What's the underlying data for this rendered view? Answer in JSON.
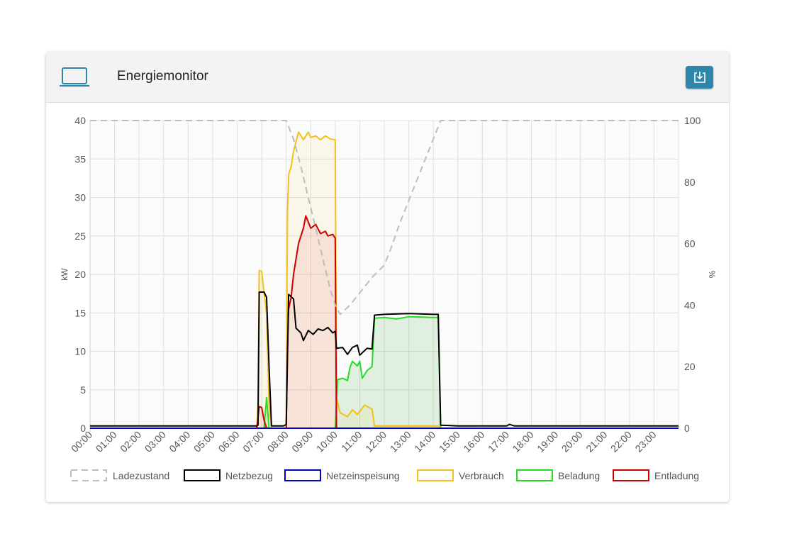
{
  "header": {
    "title": "Energiemonitor",
    "icon": "laptop-icon",
    "download_icon": "download-icon"
  },
  "colors": {
    "ladezustand": "#bdbdbd",
    "netzbezug": "#000000",
    "netzeinspeisung": "#0000c8",
    "verbrauch": "#f2c21b",
    "beladung": "#22dd22",
    "entladung": "#cc0000",
    "accent": "#2f86ab"
  },
  "chart_data": {
    "type": "line",
    "x_ticks": [
      "00:00",
      "01:00",
      "02:00",
      "03:00",
      "04:00",
      "05:00",
      "06:00",
      "07:00",
      "08:00",
      "09:00",
      "10:00",
      "11:00",
      "12:00",
      "13:00",
      "14:00",
      "15:00",
      "16:00",
      "17:00",
      "18:00",
      "19:00",
      "20:00",
      "21:00",
      "22:00",
      "23:00"
    ],
    "ylabel": "kW",
    "y2label": "%",
    "ylim": [
      0,
      40
    ],
    "y2lim": [
      0,
      100
    ],
    "y_ticks": [
      0,
      5,
      10,
      15,
      20,
      25,
      30,
      35,
      40
    ],
    "y2_ticks": [
      0,
      20,
      40,
      60,
      80,
      100
    ],
    "grid": true,
    "legend_position": "bottom",
    "series": [
      {
        "name": "Ladezustand",
        "axis": "right",
        "style": "dashed",
        "fill": false,
        "points": [
          [
            0,
            100
          ],
          [
            8.0,
            100
          ],
          [
            8.3,
            94
          ],
          [
            8.6,
            85
          ],
          [
            8.9,
            75
          ],
          [
            9.2,
            65
          ],
          [
            9.5,
            55
          ],
          [
            9.8,
            45
          ],
          [
            10.0,
            40
          ],
          [
            10.2,
            37
          ],
          [
            10.6,
            40
          ],
          [
            11.0,
            44
          ],
          [
            11.5,
            49
          ],
          [
            12.0,
            53
          ],
          [
            12.3,
            59
          ],
          [
            12.6,
            66
          ],
          [
            13.0,
            74
          ],
          [
            13.4,
            82
          ],
          [
            13.7,
            88
          ],
          [
            14.0,
            94
          ],
          [
            14.3,
            100
          ],
          [
            24,
            100
          ]
        ]
      },
      {
        "name": "Netzbezug",
        "axis": "left",
        "style": "solid",
        "fill": false,
        "points": [
          [
            0,
            0.3
          ],
          [
            6.8,
            0.3
          ],
          [
            6.85,
            0.4
          ],
          [
            6.9,
            17.7
          ],
          [
            7.1,
            17.7
          ],
          [
            7.2,
            17
          ],
          [
            7.3,
            8
          ],
          [
            7.4,
            0.3
          ],
          [
            7.9,
            0.3
          ],
          [
            8.0,
            0.5
          ],
          [
            8.1,
            17.4
          ],
          [
            8.3,
            16.8
          ],
          [
            8.4,
            13
          ],
          [
            8.6,
            12.4
          ],
          [
            8.7,
            11.4
          ],
          [
            8.9,
            12.7
          ],
          [
            9.1,
            12.2
          ],
          [
            9.3,
            12.9
          ],
          [
            9.5,
            12.7
          ],
          [
            9.7,
            13.1
          ],
          [
            9.9,
            12.4
          ],
          [
            10.0,
            12.6
          ],
          [
            10.05,
            10.4
          ],
          [
            10.3,
            10.5
          ],
          [
            10.5,
            9.6
          ],
          [
            10.7,
            10.5
          ],
          [
            10.9,
            10.8
          ],
          [
            11.0,
            9.5
          ],
          [
            11.3,
            10.4
          ],
          [
            11.5,
            10.3
          ],
          [
            11.6,
            14.7
          ],
          [
            12.0,
            14.8
          ],
          [
            13.0,
            14.9
          ],
          [
            14.0,
            14.8
          ],
          [
            14.2,
            14.8
          ],
          [
            14.3,
            0.4
          ],
          [
            15.0,
            0.3
          ],
          [
            17.0,
            0.3
          ],
          [
            17.1,
            0.5
          ],
          [
            17.3,
            0.3
          ],
          [
            24,
            0.3
          ]
        ]
      },
      {
        "name": "Netzeinspeisung",
        "axis": "left",
        "style": "solid",
        "fill": false,
        "points": [
          [
            0,
            0
          ],
          [
            24,
            0
          ]
        ]
      },
      {
        "name": "Verbrauch",
        "axis": "left",
        "style": "solid",
        "fill": true,
        "points": [
          [
            0,
            0
          ],
          [
            6.8,
            0
          ],
          [
            6.85,
            3
          ],
          [
            6.9,
            20.5
          ],
          [
            7.0,
            20.4
          ],
          [
            7.1,
            17.5
          ],
          [
            7.2,
            15
          ],
          [
            7.3,
            3
          ],
          [
            7.4,
            0
          ],
          [
            8.0,
            0
          ],
          [
            8.05,
            28
          ],
          [
            8.1,
            33
          ],
          [
            8.2,
            34
          ],
          [
            8.3,
            36
          ],
          [
            8.5,
            38.5
          ],
          [
            8.7,
            37.5
          ],
          [
            8.9,
            38.5
          ],
          [
            9.0,
            37.8
          ],
          [
            9.2,
            38
          ],
          [
            9.4,
            37.5
          ],
          [
            9.6,
            38
          ],
          [
            9.8,
            37.6
          ],
          [
            10.0,
            37.5
          ],
          [
            10.05,
            4
          ],
          [
            10.2,
            2
          ],
          [
            10.5,
            1.5
          ],
          [
            10.7,
            2.4
          ],
          [
            10.9,
            1.8
          ],
          [
            11.2,
            3
          ],
          [
            11.5,
            2.5
          ],
          [
            11.6,
            0.3
          ],
          [
            14.2,
            0.3
          ],
          [
            14.3,
            0
          ],
          [
            24,
            0
          ]
        ]
      },
      {
        "name": "Beladung",
        "axis": "left",
        "style": "solid",
        "fill": true,
        "points": [
          [
            0,
            0
          ],
          [
            7.1,
            0
          ],
          [
            7.2,
            4
          ],
          [
            7.3,
            0
          ],
          [
            10.0,
            0
          ],
          [
            10.1,
            6.3
          ],
          [
            10.3,
            6.5
          ],
          [
            10.5,
            6.2
          ],
          [
            10.6,
            7.9
          ],
          [
            10.7,
            8.7
          ],
          [
            10.9,
            8.1
          ],
          [
            11.0,
            8.7
          ],
          [
            11.1,
            6.5
          ],
          [
            11.3,
            7.5
          ],
          [
            11.5,
            8.0
          ],
          [
            11.6,
            14.3
          ],
          [
            12.0,
            14.4
          ],
          [
            12.5,
            14.2
          ],
          [
            13.0,
            14.5
          ],
          [
            14.0,
            14.4
          ],
          [
            14.2,
            14.4
          ],
          [
            14.3,
            0
          ],
          [
            24,
            0
          ]
        ]
      },
      {
        "name": "Entladung",
        "axis": "left",
        "style": "solid",
        "fill": true,
        "points": [
          [
            0,
            0
          ],
          [
            6.8,
            0
          ],
          [
            6.9,
            2.8
          ],
          [
            7.0,
            2.7
          ],
          [
            7.1,
            1
          ],
          [
            7.2,
            0
          ],
          [
            8.0,
            0
          ],
          [
            8.05,
            10
          ],
          [
            8.1,
            15.5
          ],
          [
            8.2,
            17
          ],
          [
            8.3,
            20
          ],
          [
            8.5,
            24
          ],
          [
            8.7,
            26
          ],
          [
            8.8,
            27.6
          ],
          [
            9.0,
            26
          ],
          [
            9.2,
            26.5
          ],
          [
            9.4,
            25.3
          ],
          [
            9.6,
            25.6
          ],
          [
            9.7,
            25
          ],
          [
            9.9,
            25.2
          ],
          [
            10.0,
            24.7
          ],
          [
            10.05,
            0
          ],
          [
            24,
            0
          ]
        ]
      }
    ]
  }
}
